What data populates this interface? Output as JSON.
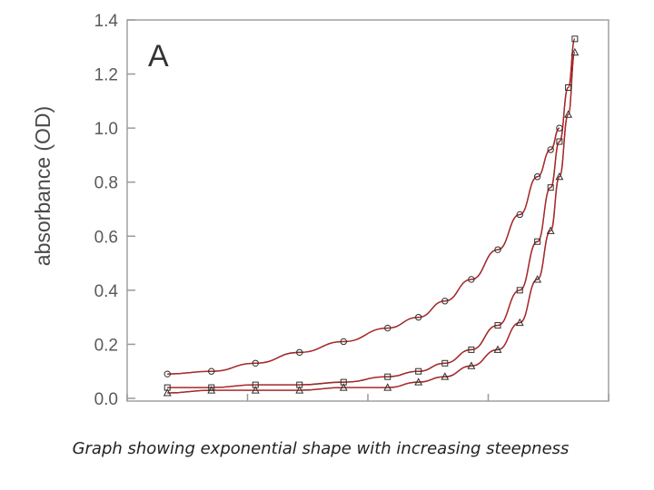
{
  "caption": "Graph showing exponential shape with increasing steepness",
  "chart_data": {
    "type": "scatter",
    "panel_label": "A",
    "ylabel": "absorbance (OD)",
    "xlabel": "",
    "ylim": [
      0.0,
      1.4
    ],
    "yticks": [
      "0.0",
      "0.2",
      "0.4",
      "0.6",
      "0.8",
      "1.0",
      "1.2",
      "1.4"
    ],
    "xlim": [
      0,
      100
    ],
    "grid": false,
    "legend": "none",
    "colors": {
      "points": "#2e2e2e",
      "fit": "#cc2222",
      "trend": "#111111",
      "axes": "#9a9a9a"
    },
    "series": [
      {
        "marker": "circle",
        "x": [
          5,
          15,
          25,
          35,
          45,
          55,
          62,
          68,
          74,
          80,
          85,
          89,
          92,
          94
        ],
        "values": [
          0.09,
          0.1,
          0.13,
          0.17,
          0.21,
          0.26,
          0.3,
          0.36,
          0.44,
          0.55,
          0.68,
          0.82,
          0.92,
          1.0
        ]
      },
      {
        "marker": "square",
        "x": [
          5,
          15,
          25,
          35,
          45,
          55,
          62,
          68,
          74,
          80,
          85,
          89,
          92,
          94,
          96,
          97.5
        ],
        "values": [
          0.04,
          0.04,
          0.05,
          0.05,
          0.06,
          0.08,
          0.1,
          0.13,
          0.18,
          0.27,
          0.4,
          0.58,
          0.78,
          0.95,
          1.15,
          1.33
        ]
      },
      {
        "marker": "triangle",
        "x": [
          5,
          15,
          25,
          35,
          45,
          55,
          62,
          68,
          74,
          80,
          85,
          89,
          92,
          94,
          96,
          97.5
        ],
        "values": [
          0.02,
          0.03,
          0.03,
          0.03,
          0.04,
          0.04,
          0.06,
          0.08,
          0.12,
          0.18,
          0.28,
          0.44,
          0.62,
          0.82,
          1.05,
          1.28
        ]
      }
    ]
  }
}
